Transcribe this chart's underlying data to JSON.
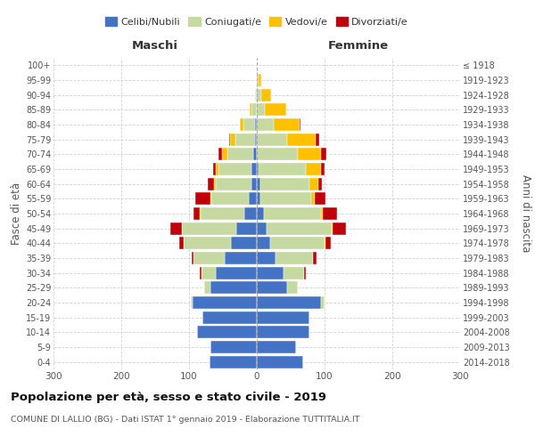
{
  "age_groups": [
    "100+",
    "95-99",
    "90-94",
    "85-89",
    "80-84",
    "75-79",
    "70-74",
    "65-69",
    "60-64",
    "55-59",
    "50-54",
    "45-49",
    "40-44",
    "35-39",
    "30-34",
    "25-29",
    "20-24",
    "15-19",
    "10-14",
    "5-9",
    "0-4"
  ],
  "birth_years": [
    "≤ 1918",
    "1919-1923",
    "1924-1928",
    "1929-1933",
    "1934-1938",
    "1939-1943",
    "1944-1948",
    "1949-1953",
    "1954-1958",
    "1959-1963",
    "1964-1968",
    "1969-1973",
    "1974-1978",
    "1979-1983",
    "1984-1988",
    "1989-1993",
    "1994-1998",
    "1999-2003",
    "2004-2008",
    "2009-2013",
    "2014-2018"
  ],
  "male": {
    "celibi": [
      0,
      0,
      0,
      0,
      2,
      3,
      5,
      8,
      8,
      12,
      18,
      30,
      38,
      48,
      60,
      68,
      95,
      80,
      88,
      68,
      70
    ],
    "coniugati": [
      0,
      0,
      2,
      8,
      18,
      28,
      38,
      48,
      52,
      55,
      65,
      80,
      70,
      45,
      22,
      10,
      3,
      0,
      0,
      0,
      0
    ],
    "vedovi": [
      0,
      0,
      1,
      2,
      5,
      8,
      8,
      5,
      3,
      2,
      1,
      0,
      0,
      0,
      0,
      0,
      0,
      0,
      0,
      0,
      0
    ],
    "divorziati": [
      0,
      0,
      0,
      0,
      0,
      2,
      5,
      3,
      10,
      22,
      10,
      18,
      6,
      3,
      2,
      0,
      0,
      0,
      0,
      0,
      0
    ]
  },
  "female": {
    "nubili": [
      0,
      0,
      0,
      0,
      0,
      0,
      0,
      3,
      5,
      5,
      10,
      15,
      20,
      28,
      40,
      45,
      95,
      78,
      78,
      58,
      68
    ],
    "coniugate": [
      0,
      2,
      6,
      12,
      25,
      45,
      60,
      70,
      72,
      75,
      85,
      95,
      80,
      55,
      30,
      16,
      5,
      0,
      0,
      0,
      0
    ],
    "vedove": [
      0,
      4,
      15,
      32,
      38,
      42,
      35,
      22,
      14,
      6,
      3,
      2,
      1,
      0,
      0,
      0,
      0,
      0,
      0,
      0,
      0
    ],
    "divorziate": [
      0,
      0,
      0,
      0,
      2,
      5,
      8,
      5,
      5,
      15,
      20,
      20,
      8,
      5,
      2,
      0,
      0,
      0,
      0,
      0,
      0
    ]
  },
  "colors": {
    "celibi": "#4472c4",
    "coniugati": "#c5d9a0",
    "vedovi": "#ffc000",
    "divorziati": "#c0000b"
  },
  "xlim": 300,
  "title": "Popolazione per età, sesso e stato civile - 2019",
  "subtitle": "COMUNE DI LALLIO (BG) - Dati ISTAT 1° gennaio 2019 - Elaborazione TUTTITALIA.IT",
  "ylabel_left": "Fasce di età",
  "ylabel_right": "Anni di nascita",
  "xlabel_maschi": "Maschi",
  "xlabel_femmine": "Femmine",
  "legend_labels": [
    "Celibi/Nubili",
    "Coniugati/e",
    "Vedovi/e",
    "Divorziati/e"
  ],
  "bg_color": "#ffffff",
  "grid_color": "#cccccc"
}
